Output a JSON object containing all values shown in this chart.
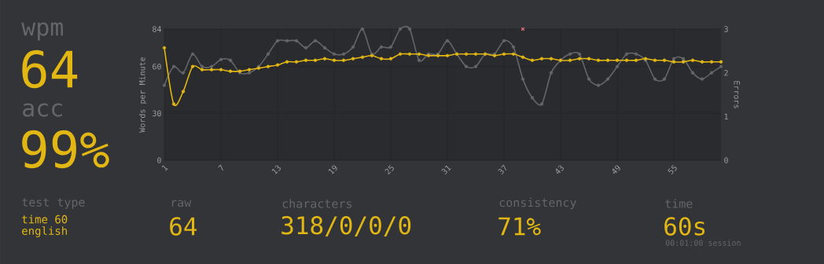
{
  "chart_data": {
    "type": "line",
    "x": [
      1,
      2,
      3,
      4,
      5,
      6,
      7,
      8,
      9,
      10,
      11,
      12,
      13,
      14,
      15,
      16,
      17,
      18,
      19,
      20,
      21,
      22,
      23,
      24,
      25,
      26,
      27,
      28,
      29,
      30,
      31,
      32,
      33,
      34,
      35,
      36,
      37,
      38,
      39,
      40,
      41,
      42,
      43,
      44,
      45,
      46,
      47,
      48,
      49,
      50,
      51,
      52,
      53,
      54,
      55,
      56,
      57,
      58,
      59,
      60
    ],
    "series": [
      {
        "color": "#646669",
        "values": [
          48,
          60,
          56,
          68,
          60,
          60,
          64.5,
          64,
          56,
          56,
          60,
          68,
          76.5,
          76.5,
          76.5,
          72,
          76.5,
          72,
          68,
          68,
          72.5,
          84,
          68,
          72.5,
          72.5,
          84,
          84,
          64,
          68,
          68,
          76.5,
          68,
          60,
          60,
          68,
          68,
          76.5,
          72.5,
          52,
          40,
          36,
          56,
          64,
          68,
          68,
          52,
          48,
          52,
          60,
          68,
          68,
          64,
          52,
          52,
          65,
          65,
          56,
          52,
          56,
          60
        ]
      },
      {
        "color": "#e2b714",
        "values": [
          72,
          36,
          44,
          60,
          58,
          58,
          58,
          57,
          57,
          58,
          59,
          60,
          61,
          63,
          63,
          64,
          64,
          65,
          64,
          64,
          65,
          66,
          67,
          65,
          65,
          68,
          68,
          68,
          67,
          67,
          67,
          68,
          68,
          68,
          68,
          67,
          68,
          68,
          66,
          64,
          65,
          65,
          64,
          64,
          65,
          65,
          64,
          64,
          64,
          64,
          64,
          65,
          64,
          64,
          63,
          63,
          64,
          63,
          63,
          63
        ]
      },
      {
        "type": "scatter",
        "axis": "y2",
        "marker": "cross",
        "color": "#e06c75",
        "x": [
          39
        ],
        "values": [
          3
        ]
      }
    ],
    "xlim": [
      1,
      60
    ],
    "xticks": [
      1,
      7,
      13,
      19,
      25,
      31,
      37,
      43,
      49,
      55
    ],
    "ylim": [
      0,
      84
    ],
    "yticks": [
      0,
      30,
      60,
      84
    ],
    "y2lim": [
      0,
      3
    ],
    "y2ticks": [
      0,
      1,
      2,
      3
    ],
    "ylabel": "Words per Minute",
    "y2label": "Errors",
    "grid": true,
    "marker": "circle",
    "annotations": [
      "wpm",
      "64",
      "acc",
      "99%",
      "test type",
      "time 60",
      "english",
      "raw",
      "64",
      "characters",
      "318/0/0/0",
      "consistency",
      "71%",
      "time",
      "60s",
      "00:01:00 session"
    ]
  }
}
